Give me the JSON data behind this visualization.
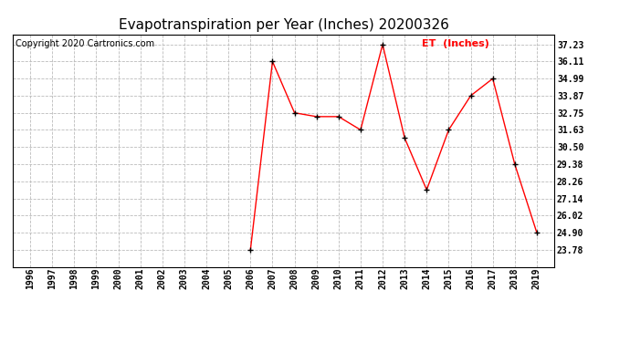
{
  "title": "Evapotranspiration per Year (Inches) 20200326",
  "copyright": "Copyright 2020 Cartronics.com",
  "legend_label": "ET  (Inches)",
  "years": [
    1996,
    1997,
    1998,
    1999,
    2000,
    2001,
    2002,
    2003,
    2004,
    2005,
    2006,
    2007,
    2008,
    2009,
    2010,
    2011,
    2012,
    2013,
    2014,
    2015,
    2016,
    2017,
    2018,
    2019
  ],
  "values": [
    null,
    null,
    null,
    null,
    null,
    null,
    null,
    null,
    null,
    null,
    23.78,
    36.11,
    32.75,
    32.5,
    32.5,
    31.63,
    37.23,
    31.1,
    27.7,
    31.63,
    33.87,
    34.99,
    29.38,
    24.9
  ],
  "yticks": [
    23.78,
    24.9,
    26.02,
    27.14,
    28.26,
    29.38,
    30.5,
    31.63,
    32.75,
    33.87,
    34.99,
    36.11,
    37.23
  ],
  "ylim": [
    22.66,
    37.9
  ],
  "line_color": "red",
  "marker_color": "black",
  "background_color": "white",
  "grid_color": "#bbbbbb",
  "title_fontsize": 11,
  "copyright_fontsize": 7,
  "legend_color": "red"
}
